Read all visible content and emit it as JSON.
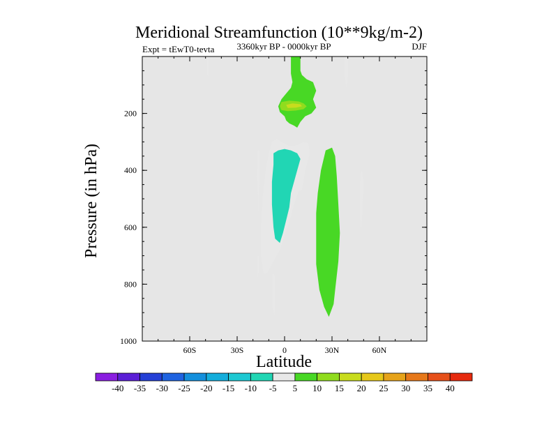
{
  "chart_data": {
    "type": "heatmap",
    "title": "Meridional Streamfunction (10**9kg/m-2)",
    "subtitle_left": "Expt = tEwT0-tevta",
    "subtitle_center": "3360kyr BP - 0000kyr BP",
    "subtitle_right": "DJF",
    "xlabel": "Latitude",
    "ylabel": "Pressure (in hPa)",
    "xlim": [
      -90,
      90
    ],
    "ylim": [
      1000,
      0
    ],
    "x_ticks": [
      {
        "value": -60,
        "label": "60S"
      },
      {
        "value": -30,
        "label": "30S"
      },
      {
        "value": 0,
        "label": "0"
      },
      {
        "value": 30,
        "label": "30N"
      },
      {
        "value": 60,
        "label": "60N"
      }
    ],
    "y_ticks": [
      {
        "value": 200,
        "label": "200"
      },
      {
        "value": 400,
        "label": "400"
      },
      {
        "value": 600,
        "label": "600"
      },
      {
        "value": 800,
        "label": "800"
      },
      {
        "value": 1000,
        "label": "1000"
      }
    ],
    "background_color": "#e6e6e6",
    "colorbar": {
      "labels": [
        "-40",
        "-35",
        "-30",
        "-25",
        "-20",
        "-15",
        "-10",
        "-5",
        "5",
        "10",
        "15",
        "20",
        "25",
        "30",
        "35",
        "40"
      ],
      "colors": [
        "#8a1ee0",
        "#5b1fd6",
        "#2540d6",
        "#1f63e0",
        "#148fdc",
        "#14addb",
        "#1ec8d2",
        "#21d6b4",
        "#e8e8e8",
        "#48d825",
        "#90dc1e",
        "#c8dc1e",
        "#e6c81a",
        "#e6a31a",
        "#e6781a",
        "#e6501a",
        "#e62a0e"
      ]
    },
    "contour_regions": [
      {
        "name": "neg-thin-nh-upper",
        "level": -5,
        "polygon": [
          [
            -49,
            0
          ],
          [
            -48,
            0
          ],
          [
            -48,
            60
          ],
          [
            -48.5,
            70
          ],
          [
            -49,
            60
          ]
        ]
      },
      {
        "name": "pos-eq-column",
        "level": 5,
        "polygon": [
          [
            4,
            0
          ],
          [
            10,
            0
          ],
          [
            10,
            50
          ],
          [
            11,
            65
          ],
          [
            14,
            80
          ],
          [
            18,
            90
          ],
          [
            20,
            120
          ],
          [
            18,
            150
          ],
          [
            20,
            180
          ],
          [
            17,
            200
          ],
          [
            13,
            210
          ],
          [
            10,
            230
          ],
          [
            8,
            250
          ],
          [
            6,
            243
          ],
          [
            3,
            235
          ],
          [
            1,
            225
          ],
          [
            0,
            210
          ],
          [
            -3,
            195
          ],
          [
            -4,
            175
          ],
          [
            -2,
            150
          ],
          [
            1,
            130
          ],
          [
            4,
            110
          ],
          [
            5,
            90
          ],
          [
            4,
            60
          ]
        ]
      },
      {
        "name": "pos-eq-core",
        "level": 10,
        "polygon": [
          [
            -2,
            160
          ],
          [
            3,
            155
          ],
          [
            9,
            158
          ],
          [
            12,
            165
          ],
          [
            14,
            175
          ],
          [
            12,
            185
          ],
          [
            7,
            190
          ],
          [
            2,
            192
          ],
          [
            -2,
            188
          ],
          [
            -3,
            175
          ]
        ]
      },
      {
        "name": "pos-eq-center",
        "level": 15,
        "polygon": [
          [
            1,
            170
          ],
          [
            5,
            165
          ],
          [
            10,
            168
          ],
          [
            11,
            175
          ],
          [
            7,
            180
          ],
          [
            2,
            181
          ]
        ]
      },
      {
        "name": "neg-thin-nh-top",
        "level": -5,
        "polygon": [
          [
            38,
            0
          ],
          [
            40,
            0
          ],
          [
            40,
            40
          ],
          [
            40,
            80
          ],
          [
            39,
            110
          ],
          [
            38,
            70
          ]
        ]
      },
      {
        "name": "neg-sliver-sh",
        "level": -5,
        "polygon": [
          [
            -17,
            330
          ],
          [
            -16,
            330
          ],
          [
            -16,
            450
          ],
          [
            -16.5,
            560
          ],
          [
            -17,
            470
          ],
          [
            -17.5,
            420
          ]
        ]
      },
      {
        "name": "neg-sliver-sh-low",
        "level": -5,
        "polygon": [
          [
            -17,
            700
          ],
          [
            -16.5,
            700
          ],
          [
            -16.5,
            760
          ],
          [
            -17,
            780
          ]
        ]
      },
      {
        "name": "neg-main-cell",
        "level": -5,
        "polygon": [
          [
            -8,
            300
          ],
          [
            -5,
            290
          ],
          [
            -2,
            300
          ],
          [
            3,
            315
          ],
          [
            8,
            312
          ],
          [
            12,
            300
          ],
          [
            15,
            305
          ],
          [
            16,
            340
          ],
          [
            13,
            400
          ],
          [
            12,
            440
          ],
          [
            11,
            470
          ],
          [
            9,
            470
          ],
          [
            6,
            520
          ],
          [
            3,
            580
          ],
          [
            0,
            630
          ],
          [
            -3,
            680
          ],
          [
            -7,
            720
          ],
          [
            -11,
            760
          ],
          [
            -13,
            765
          ],
          [
            -14,
            740
          ],
          [
            -15,
            700
          ],
          [
            -15,
            600
          ],
          [
            -14,
            500
          ],
          [
            -12,
            400
          ],
          [
            -10,
            340
          ]
        ]
      },
      {
        "name": "neg-main-core",
        "level": -10,
        "polygon": [
          [
            -7,
            340
          ],
          [
            -4,
            330
          ],
          [
            0,
            325
          ],
          [
            4,
            330
          ],
          [
            8,
            340
          ],
          [
            10,
            360
          ],
          [
            8,
            400
          ],
          [
            6,
            440
          ],
          [
            4,
            480
          ],
          [
            3,
            530
          ],
          [
            1,
            575
          ],
          [
            -1,
            620
          ],
          [
            -3,
            655
          ],
          [
            -6,
            640
          ],
          [
            -7,
            600
          ],
          [
            -8,
            520
          ],
          [
            -8,
            440
          ],
          [
            -7,
            380
          ]
        ]
      },
      {
        "name": "neg-sliver-low",
        "level": -5,
        "polygon": [
          [
            -7.5,
            760
          ],
          [
            -6,
            770
          ],
          [
            -6,
            880
          ],
          [
            -6.5,
            910
          ],
          [
            -7.5,
            880
          ]
        ]
      },
      {
        "name": "pos-nh-lower-cell",
        "level": 5,
        "polygon": [
          [
            26,
            330
          ],
          [
            30,
            320
          ],
          [
            32,
            350
          ],
          [
            33,
            420
          ],
          [
            34,
            520
          ],
          [
            35,
            620
          ],
          [
            34,
            720
          ],
          [
            32,
            820
          ],
          [
            31,
            870
          ],
          [
            28,
            915
          ],
          [
            25,
            880
          ],
          [
            22,
            820
          ],
          [
            20,
            730
          ],
          [
            20,
            620
          ],
          [
            20,
            550
          ],
          [
            21,
            480
          ],
          [
            23,
            400
          ]
        ]
      },
      {
        "name": "neg-nh-mid-cell",
        "level": -5,
        "polygon": [
          [
            48,
            410
          ],
          [
            49,
            400
          ],
          [
            50,
            440
          ],
          [
            49.5,
            520
          ],
          [
            48.5,
            610
          ],
          [
            47.5,
            560
          ],
          [
            47.5,
            470
          ]
        ]
      }
    ]
  }
}
